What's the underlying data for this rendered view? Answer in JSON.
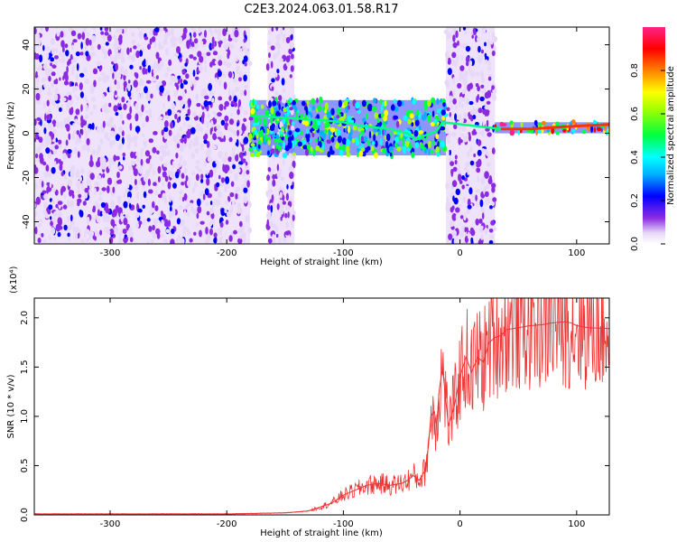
{
  "title": "C2E3.2024.063.01.58.R17",
  "chart_data": [
    {
      "type": "heatmap",
      "xlabel": "Height of straight line (km)",
      "ylabel": "Frequency (Hz)",
      "xlim": [
        -365,
        128
      ],
      "ylim": [
        -50,
        48
      ],
      "xticks": [
        -300,
        -200,
        -100,
        0,
        100
      ],
      "yticks": [
        -40,
        -20,
        0,
        20,
        40
      ],
      "colorbar": {
        "label": "Normalized spectral amplitude",
        "range": [
          0,
          1
        ],
        "ticks": [
          "0.0",
          "0.2",
          "0.4",
          "0.6",
          "0.8"
        ]
      },
      "regions": [
        {
          "name": "noise",
          "x": [
            -365,
            -180
          ],
          "freq": [
            -50,
            48
          ],
          "amplitude": 0.15
        },
        {
          "name": "noise",
          "x": [
            -165,
            -142
          ],
          "freq": [
            -50,
            48
          ],
          "amplitude": 0.05
        },
        {
          "name": "signal",
          "x": [
            -180,
            -12
          ],
          "freq": [
            -10,
            15
          ],
          "amplitude": 0.45
        },
        {
          "name": "noise",
          "x": [
            -12,
            30
          ],
          "freq": [
            -50,
            48
          ],
          "amplitude": 0.2
        },
        {
          "name": "signal",
          "x": [
            30,
            128
          ],
          "freq": [
            0,
            5
          ],
          "amplitude": 0.9
        }
      ],
      "ridge": {
        "x": [
          -180,
          -150,
          -120,
          -100,
          -80,
          -60,
          -45,
          -38,
          -30,
          -20,
          -15,
          35,
          60,
          90,
          128
        ],
        "freq": [
          8,
          7,
          6,
          5,
          3,
          2,
          0,
          -3,
          -1,
          1,
          5,
          2,
          2,
          3,
          4
        ]
      }
    },
    {
      "type": "line",
      "xlabel": "Height of straight line (km)",
      "ylabel": "SNR (10 * v/v)",
      "y_multiplier": "(x10⁴)",
      "xlim": [
        -365,
        128
      ],
      "ylim": [
        0,
        2.2
      ],
      "xticks": [
        -300,
        -200,
        -100,
        0,
        100
      ],
      "yticks": [
        "0.0",
        "0.5",
        "1.0",
        "1.5",
        "2.0"
      ],
      "series": [
        {
          "color": "#ee3333",
          "x": [
            -365,
            -300,
            -250,
            -200,
            -150,
            -130,
            -120,
            -110,
            -100,
            -90,
            -80,
            -70,
            -60,
            -50,
            -45,
            -40,
            -35,
            -30,
            -27,
            -25,
            -22,
            -20,
            -18,
            -15,
            -12,
            -10,
            -5,
            0,
            5,
            10,
            15,
            20,
            25,
            30,
            35,
            40,
            50,
            60,
            70,
            80,
            90,
            95,
            100,
            110,
            128
          ],
          "y": [
            0.01,
            0.01,
            0.01,
            0.01,
            0.02,
            0.04,
            0.08,
            0.12,
            0.2,
            0.25,
            0.3,
            0.32,
            0.3,
            0.32,
            0.35,
            0.4,
            0.35,
            0.45,
            0.7,
            1.0,
            1.05,
            0.9,
            1.25,
            1.5,
            1.15,
            0.9,
            1.1,
            1.4,
            1.6,
            1.45,
            1.6,
            1.55,
            1.75,
            1.8,
            1.82,
            1.88,
            1.9,
            1.92,
            1.93,
            1.95,
            1.96,
            1.95,
            1.92,
            1.9,
            1.89
          ]
        }
      ]
    }
  ]
}
